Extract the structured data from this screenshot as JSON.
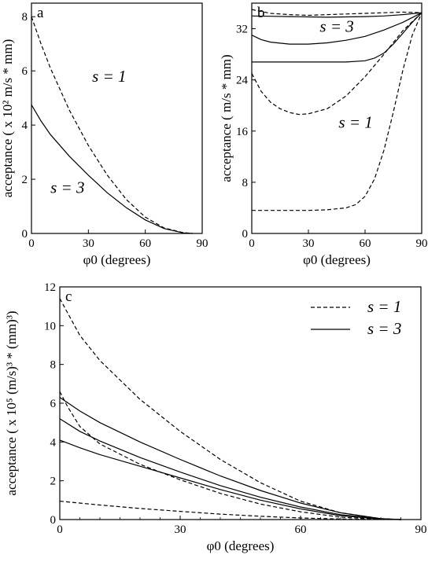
{
  "chart_data": [
    {
      "panel": "a",
      "type": "line",
      "xlabel": "φ0 (degrees)",
      "ylabel": "acceptance ( x 10² m/s * mm)",
      "xlim": [
        0,
        90
      ],
      "ylim": [
        0,
        8.5
      ],
      "xticks": [
        "0",
        "30",
        "60",
        "90"
      ],
      "yticks": [
        "0",
        "2",
        "4",
        "6",
        "8"
      ],
      "annotations": [
        {
          "text": "s = 1",
          "x": 32,
          "y": 5.6
        },
        {
          "text": "s = 3",
          "x": 10,
          "y": 1.5
        }
      ],
      "series": [
        {
          "style": "dashed",
          "x": [
            0,
            5,
            10,
            20,
            30,
            40,
            50,
            60,
            70,
            80,
            85
          ],
          "y": [
            8.0,
            7.0,
            6.1,
            4.55,
            3.25,
            2.15,
            1.25,
            0.6,
            0.2,
            0.03,
            0.0
          ]
        },
        {
          "style": "solid",
          "x": [
            0,
            5,
            10,
            20,
            30,
            40,
            50,
            60,
            70,
            80,
            85
          ],
          "y": [
            4.75,
            4.15,
            3.65,
            2.85,
            2.15,
            1.5,
            0.95,
            0.5,
            0.18,
            0.02,
            0.0
          ]
        }
      ]
    },
    {
      "panel": "b",
      "type": "line",
      "xlabel": "φ0 (degrees)",
      "ylabel": "acceptance  ( m/s * mm)",
      "xlim": [
        0,
        90
      ],
      "ylim": [
        0,
        36
      ],
      "xticks": [
        "0",
        "30",
        "60",
        "90"
      ],
      "yticks": [
        "0",
        "8",
        "16",
        "24",
        "32"
      ],
      "annotations": [
        {
          "text": "s = 3",
          "x": 36,
          "y": 31.5
        },
        {
          "text": "s = 1",
          "x": 46,
          "y": 16.5
        }
      ],
      "series": [
        {
          "style": "dashed",
          "x": [
            0,
            5,
            10,
            20,
            30,
            40,
            50,
            60,
            70,
            80,
            90
          ],
          "y": [
            35.0,
            34.7,
            34.4,
            34.2,
            34.1,
            34.2,
            34.3,
            34.4,
            34.5,
            34.6,
            34.5
          ]
        },
        {
          "style": "solid",
          "x": [
            0,
            10,
            20,
            30,
            40,
            50,
            60,
            70,
            80,
            90
          ],
          "y": [
            34.0,
            33.95,
            33.9,
            33.85,
            33.8,
            33.85,
            33.9,
            34.0,
            34.2,
            34.5
          ]
        },
        {
          "style": "solid",
          "x": [
            0,
            5,
            10,
            20,
            30,
            40,
            50,
            60,
            70,
            80,
            90
          ],
          "y": [
            31.0,
            30.3,
            29.9,
            29.6,
            29.6,
            29.8,
            30.2,
            30.8,
            31.8,
            33.0,
            34.5
          ]
        },
        {
          "style": "solid",
          "x": [
            0,
            10,
            20,
            30,
            40,
            50,
            60,
            65,
            70,
            75,
            80,
            85,
            90
          ],
          "y": [
            26.8,
            26.8,
            26.8,
            26.8,
            26.8,
            26.8,
            27.0,
            27.4,
            28.2,
            29.6,
            31.3,
            33.0,
            34.5
          ]
        },
        {
          "style": "dashed",
          "x": [
            0,
            5,
            10,
            15,
            20,
            25,
            30,
            40,
            50,
            60,
            70,
            80,
            90
          ],
          "y": [
            25.0,
            22.2,
            20.5,
            19.5,
            18.9,
            18.6,
            18.7,
            19.5,
            21.5,
            24.5,
            28.0,
            31.7,
            34.5
          ]
        },
        {
          "style": "dashed",
          "x": [
            0,
            10,
            20,
            30,
            40,
            50,
            55,
            60,
            65,
            70,
            75,
            80,
            85,
            90
          ],
          "y": [
            3.6,
            3.6,
            3.6,
            3.6,
            3.7,
            4.0,
            4.5,
            5.8,
            8.5,
            13.0,
            19.0,
            25.5,
            31.0,
            34.5
          ]
        }
      ]
    },
    {
      "panel": "c",
      "type": "line",
      "xlabel": "φ0 (degrees)",
      "ylabel": "acceptance ( x 10⁵ (m/s)³ * (mm)³)",
      "xlim": [
        0,
        90
      ],
      "ylim": [
        0,
        12
      ],
      "xticks": [
        "0",
        "30",
        "60",
        "90"
      ],
      "yticks": [
        "0",
        "2",
        "4",
        "6",
        "8",
        "10",
        "12"
      ],
      "legend": {
        "position": "top-right",
        "entries": [
          {
            "label": "s = 1",
            "style": "dashed"
          },
          {
            "label": "s = 3",
            "style": "solid"
          }
        ]
      },
      "series": [
        {
          "style": "dashed",
          "x": [
            0,
            5,
            10,
            20,
            30,
            40,
            50,
            60,
            70,
            80,
            85
          ],
          "y": [
            11.4,
            9.5,
            8.2,
            6.2,
            4.55,
            3.1,
            1.9,
            0.95,
            0.35,
            0.05,
            0.0
          ]
        },
        {
          "style": "dashed",
          "x": [
            0,
            2,
            5,
            10,
            20,
            30,
            40,
            50,
            60,
            70,
            80,
            85
          ],
          "y": [
            6.6,
            5.8,
            4.8,
            3.9,
            2.85,
            2.05,
            1.35,
            0.8,
            0.4,
            0.12,
            0.02,
            0.0
          ]
        },
        {
          "style": "dashed",
          "x": [
            0,
            10,
            20,
            30,
            40,
            50,
            60,
            70,
            80,
            85
          ],
          "y": [
            0.95,
            0.75,
            0.57,
            0.42,
            0.28,
            0.17,
            0.08,
            0.03,
            0.01,
            0.0
          ]
        },
        {
          "style": "solid",
          "x": [
            0,
            5,
            10,
            20,
            30,
            40,
            50,
            60,
            70,
            80,
            85
          ],
          "y": [
            6.3,
            5.6,
            5.0,
            4.0,
            3.1,
            2.25,
            1.5,
            0.85,
            0.35,
            0.05,
            0.0
          ]
        },
        {
          "style": "solid",
          "x": [
            0,
            5,
            10,
            20,
            30,
            40,
            50,
            60,
            70,
            80,
            85
          ],
          "y": [
            5.2,
            4.55,
            4.05,
            3.2,
            2.45,
            1.75,
            1.15,
            0.65,
            0.25,
            0.04,
            0.0
          ]
        },
        {
          "style": "solid",
          "x": [
            0,
            5,
            10,
            20,
            30,
            40,
            50,
            60,
            70,
            80,
            85
          ],
          "y": [
            4.1,
            3.7,
            3.35,
            2.75,
            2.15,
            1.55,
            1.0,
            0.55,
            0.2,
            0.03,
            0.0
          ]
        }
      ]
    }
  ]
}
